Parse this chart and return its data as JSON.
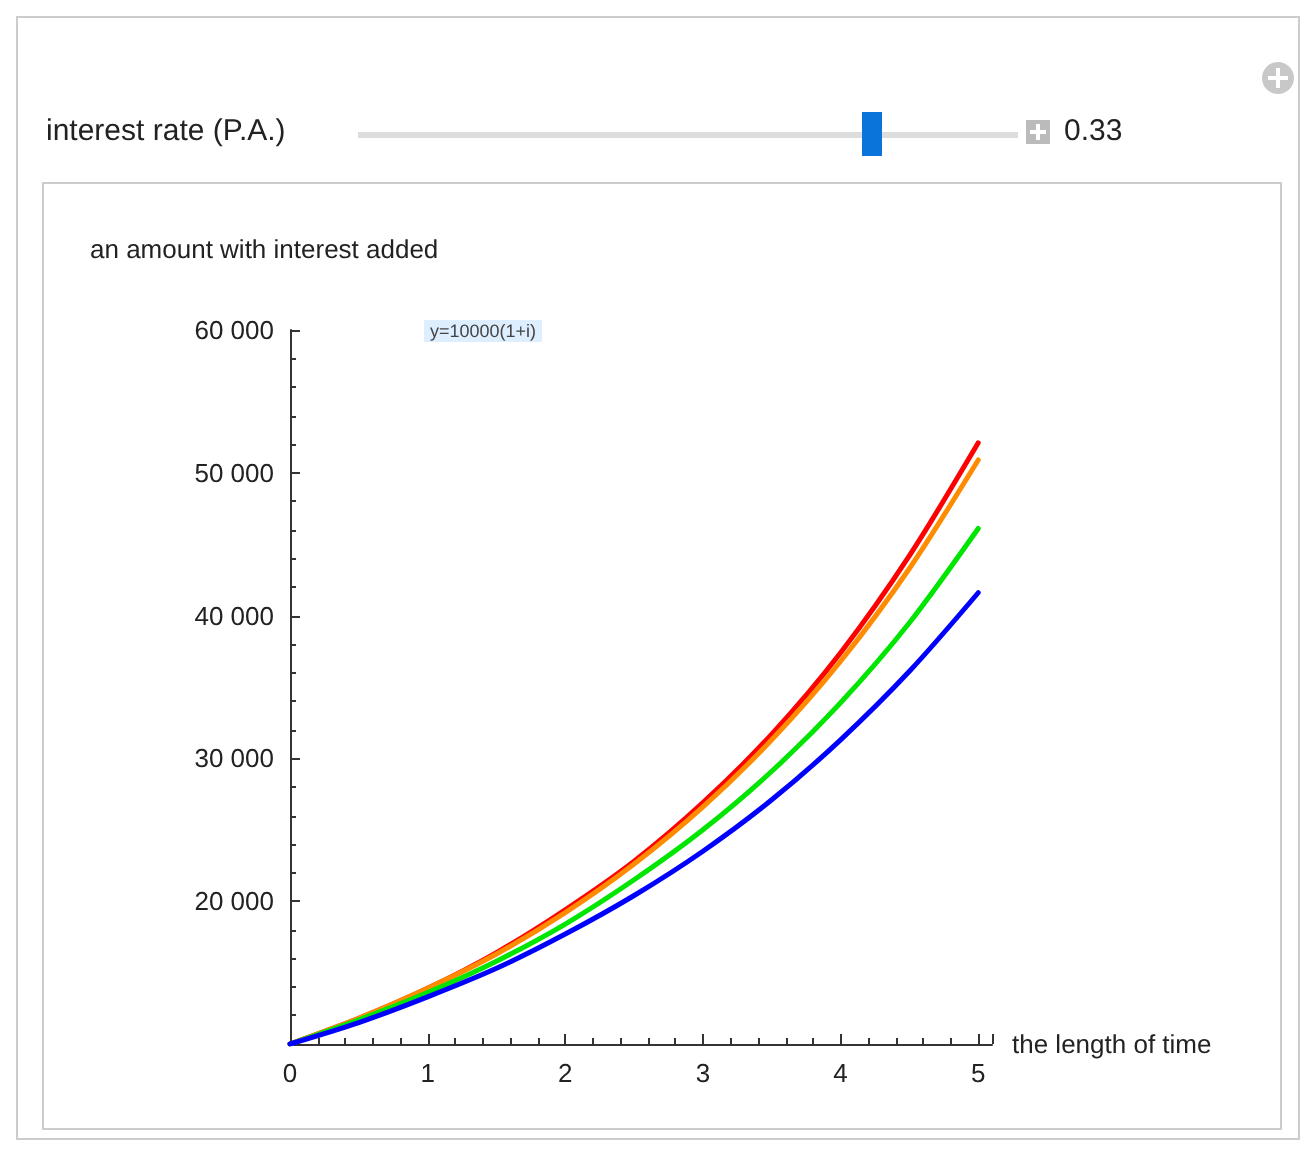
{
  "chart_data": {
    "type": "line",
    "xlabel": "the length of time",
    "ylabel": "an amount with interest added",
    "annotations": [
      "interest rate (P.A.)",
      "0.33",
      "y=10000(1+i)"
    ],
    "x": [
      0,
      0.5,
      1,
      1.5,
      2,
      2.5,
      3,
      3.5,
      4,
      4.5,
      5
    ],
    "series": [
      {
        "color": "#ff0000",
        "values": [
          10000,
          11800,
          13900,
          16400,
          19400,
          22800,
          26900,
          31700,
          37400,
          44200,
          52100
        ]
      },
      {
        "color": "#ff8c00",
        "values": [
          10000,
          11800,
          13900,
          16300,
          19200,
          22600,
          26600,
          31300,
          36800,
          43300,
          50900
        ]
      },
      {
        "color": "#00e600",
        "values": [
          10000,
          11700,
          13600,
          15800,
          18400,
          21500,
          25000,
          29100,
          33900,
          39500,
          46100
        ]
      },
      {
        "color": "#0000ff",
        "values": [
          10000,
          11500,
          13300,
          15300,
          17700,
          20400,
          23500,
          27100,
          31300,
          36100,
          41600
        ]
      }
    ],
    "xlim": [
      0,
      5.1
    ],
    "xticks": [
      0,
      1,
      2,
      3,
      4,
      5
    ],
    "ylim": [
      10000,
      60000
    ],
    "yticks": [
      {
        "value": 20000,
        "label": "20 000"
      },
      {
        "value": 30000,
        "label": "30 000"
      },
      {
        "value": 40000,
        "label": "40 000"
      },
      {
        "value": 50000,
        "label": "50 000"
      },
      {
        "value": 60000,
        "label": "60 000"
      }
    ],
    "grid": false,
    "marker": "none",
    "line_style": "solid"
  }
}
